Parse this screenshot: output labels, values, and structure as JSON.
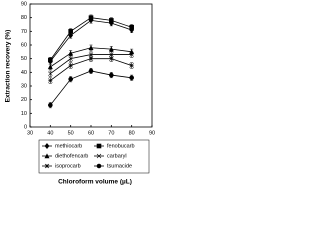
{
  "chart_data": {
    "type": "line",
    "x_label": "Chloroform volume (µL)",
    "y_label": "Extraction recovery (%)",
    "x": [
      40,
      50,
      60,
      70,
      80
    ],
    "series": [
      {
        "name": "methiocarb",
        "color": "#000000",
        "marker": "diamond",
        "values": [
          48,
          67,
          78,
          76,
          71
        ],
        "errors": [
          2,
          2,
          2,
          2,
          2
        ]
      },
      {
        "name": "fenobucarb",
        "color": "#000000",
        "marker": "square",
        "values": [
          49,
          70,
          80,
          78,
          73
        ],
        "errors": [
          2,
          2,
          2,
          2,
          2
        ]
      },
      {
        "name": "diethofencarb",
        "color": "#000000",
        "marker": "triangle",
        "values": [
          44,
          54,
          58,
          57,
          55
        ],
        "errors": [
          2,
          2,
          2,
          2,
          2
        ]
      },
      {
        "name": "carbaryl",
        "color": "#000000",
        "marker": "x",
        "values": [
          39,
          50,
          53,
          53,
          53
        ],
        "errors": [
          2,
          2,
          2,
          2,
          2
        ]
      },
      {
        "name": "isoprocarb",
        "color": "#000000",
        "marker": "star",
        "values": [
          34,
          45,
          50,
          50,
          45
        ],
        "errors": [
          2,
          2,
          2,
          2,
          2
        ]
      },
      {
        "name": "tsumacide",
        "color": "#000000",
        "marker": "circle",
        "values": [
          16,
          35,
          41,
          38,
          36
        ],
        "errors": [
          2,
          2,
          2,
          2,
          2
        ]
      }
    ],
    "xlim": [
      30,
      90
    ],
    "xticks": [
      30,
      40,
      50,
      60,
      70,
      80,
      90
    ],
    "ylim": [
      0,
      90
    ],
    "yticks": [
      0,
      10,
      20,
      30,
      40,
      50,
      60,
      70,
      80,
      90
    ]
  }
}
